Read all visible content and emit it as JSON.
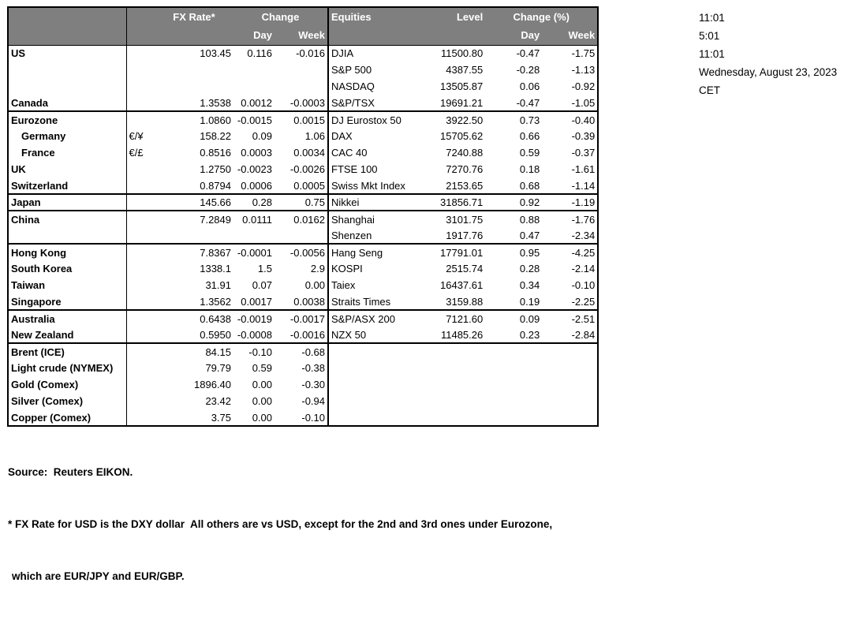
{
  "table": {
    "fx_header": {
      "rate": "FX Rate*",
      "change": "Change",
      "day": "Day",
      "week": "Week"
    },
    "equities_header": {
      "name": "Equities",
      "level": "Level",
      "change": "Change (%)",
      "day": "Day",
      "week": "Week"
    },
    "rows": [
      {
        "label": "US",
        "pair": "",
        "indent": false,
        "rate": "103.45",
        "day": "0.116",
        "week": "-0.016",
        "equity": "DJIA",
        "level": "11500.80",
        "eq_day": "-0.47",
        "eq_week": "-1.75",
        "group_end": false
      },
      {
        "label": "",
        "pair": "",
        "indent": false,
        "rate": "",
        "day": "",
        "week": "",
        "equity": "S&P 500",
        "level": "4387.55",
        "eq_day": "-0.28",
        "eq_week": "-1.13",
        "group_end": false
      },
      {
        "label": "",
        "pair": "",
        "indent": false,
        "rate": "",
        "day": "",
        "week": "",
        "equity": "NASDAQ",
        "level": "13505.87",
        "eq_day": "0.06",
        "eq_week": "-0.92",
        "group_end": false
      },
      {
        "label": "Canada",
        "pair": "",
        "indent": false,
        "rate": "1.3538",
        "day": "0.0012",
        "week": "-0.0003",
        "equity": "S&P/TSX",
        "level": "19691.21",
        "eq_day": "-0.47",
        "eq_week": "-1.05",
        "group_end": true
      },
      {
        "label": "Eurozone",
        "pair": "",
        "indent": false,
        "rate": "1.0860",
        "day": "-0.0015",
        "week": "0.0015",
        "equity": "DJ Eurostox 50",
        "level": "3922.50",
        "eq_day": "0.73",
        "eq_week": "-0.40",
        "group_end": false
      },
      {
        "label": "Germany",
        "pair": "€/¥",
        "indent": true,
        "rate": "158.22",
        "day": "0.09",
        "week": "1.06",
        "equity": "DAX",
        "level": "15705.62",
        "eq_day": "0.66",
        "eq_week": "-0.39",
        "group_end": false
      },
      {
        "label": "France",
        "pair": "€/£",
        "indent": true,
        "rate": "0.8516",
        "day": "0.0003",
        "week": "0.0034",
        "equity": "CAC 40",
        "level": "7240.88",
        "eq_day": "0.59",
        "eq_week": "-0.37",
        "group_end": false
      },
      {
        "label": "UK",
        "pair": "",
        "indent": false,
        "rate": "1.2750",
        "day": "-0.0023",
        "week": "-0.0026",
        "equity": "FTSE 100",
        "level": "7270.76",
        "eq_day": "0.18",
        "eq_week": "-1.61",
        "group_end": false
      },
      {
        "label": "Switzerland",
        "pair": "",
        "indent": false,
        "rate": "0.8794",
        "day": "0.0006",
        "week": "0.0005",
        "equity": "Swiss Mkt Index",
        "level": "2153.65",
        "eq_day": "0.68",
        "eq_week": "-1.14",
        "group_end": true
      },
      {
        "label": "Japan",
        "pair": "",
        "indent": false,
        "rate": "145.66",
        "day": "0.28",
        "week": "0.75",
        "equity": "Nikkei",
        "level": "31856.71",
        "eq_day": "0.92",
        "eq_week": "-1.19",
        "group_end": true
      },
      {
        "label": "China",
        "pair": "",
        "indent": false,
        "rate": "7.2849",
        "day": "0.0111",
        "week": "0.0162",
        "equity": "Shanghai",
        "level": "3101.75",
        "eq_day": "0.88",
        "eq_week": "-1.76",
        "group_end": false
      },
      {
        "label": "",
        "pair": "",
        "indent": false,
        "rate": "",
        "day": "",
        "week": "",
        "equity": "Shenzen",
        "level": "1917.76",
        "eq_day": "0.47",
        "eq_week": "-2.34",
        "group_end": true
      },
      {
        "label": "Hong Kong",
        "pair": "",
        "indent": false,
        "rate": "7.8367",
        "day": "-0.0001",
        "week": "-0.0056",
        "equity": "Hang Seng",
        "level": "17791.01",
        "eq_day": "0.95",
        "eq_week": "-4.25",
        "group_end": false
      },
      {
        "label": "South Korea",
        "pair": "",
        "indent": false,
        "rate": "1338.1",
        "day": "1.5",
        "week": "2.9",
        "equity": "KOSPI",
        "level": "2515.74",
        "eq_day": "0.28",
        "eq_week": "-2.14",
        "group_end": false
      },
      {
        "label": "Taiwan",
        "pair": "",
        "indent": false,
        "rate": "31.91",
        "day": "0.07",
        "week": "0.00",
        "equity": "Taiex",
        "level": "16437.61",
        "eq_day": "0.34",
        "eq_week": "-0.10",
        "group_end": false
      },
      {
        "label": "Singapore",
        "pair": "",
        "indent": false,
        "rate": "1.3562",
        "day": "0.0017",
        "week": "0.0038",
        "equity": "Straits Times",
        "level": "3159.88",
        "eq_day": "0.19",
        "eq_week": "-2.25",
        "group_end": true
      },
      {
        "label": "Australia",
        "pair": "",
        "indent": false,
        "rate": "0.6438",
        "day": "-0.0019",
        "week": "-0.0017",
        "equity": "S&P/ASX  200",
        "level": "7121.60",
        "eq_day": "0.09",
        "eq_week": "-2.51",
        "group_end": false
      },
      {
        "label": "New Zealand",
        "pair": "",
        "indent": false,
        "rate": "0.5950",
        "day": "-0.0008",
        "week": "-0.0016",
        "equity": "NZX 50",
        "level": "11485.26",
        "eq_day": "0.23",
        "eq_week": "-2.84",
        "group_end": true
      },
      {
        "label": "Brent (ICE)",
        "pair": "",
        "indent": false,
        "rate": "84.15",
        "day": "-0.10",
        "week": "-0.68",
        "equity": "",
        "level": "",
        "eq_day": "",
        "eq_week": "",
        "group_end": false
      },
      {
        "label": "Light crude (NYMEX)",
        "pair": "",
        "indent": false,
        "rate": "79.79",
        "day": "0.59",
        "week": "-0.38",
        "equity": "",
        "level": "",
        "eq_day": "",
        "eq_week": "",
        "group_end": false
      },
      {
        "label": "Gold (Comex)",
        "pair": "",
        "indent": false,
        "rate": "1896.40",
        "day": "0.00",
        "week": "-0.30",
        "equity": "",
        "level": "",
        "eq_day": "",
        "eq_week": "",
        "group_end": false
      },
      {
        "label": "Silver (Comex)",
        "pair": "",
        "indent": false,
        "rate": "23.42",
        "day": "0.00",
        "week": "-0.94",
        "equity": "",
        "level": "",
        "eq_day": "",
        "eq_week": "",
        "group_end": false
      },
      {
        "label": "Copper (Comex)",
        "pair": "",
        "indent": false,
        "rate": "3.75",
        "day": "0.00",
        "week": "-0.10",
        "equity": "",
        "level": "",
        "eq_day": "",
        "eq_week": "",
        "group_end": false
      }
    ]
  },
  "timestamps": {
    "lines": [
      "11:01",
      "5:01",
      "11:01",
      "Wednesday, August 23, 2023",
      "CET"
    ]
  },
  "footer": {
    "source": "Source:  Reuters EIKON.",
    "note1": "* FX Rate for USD is the DXY dollar  All others are vs USD, except for the 2nd and 3rd ones under Eurozone,",
    "note2": "which are EUR/JPY and EUR/GBP."
  },
  "colors": {
    "header_bg": "#7f7f7f",
    "header_text": "#ffffff",
    "border": "#000000",
    "text": "#000000",
    "background": "#ffffff"
  }
}
